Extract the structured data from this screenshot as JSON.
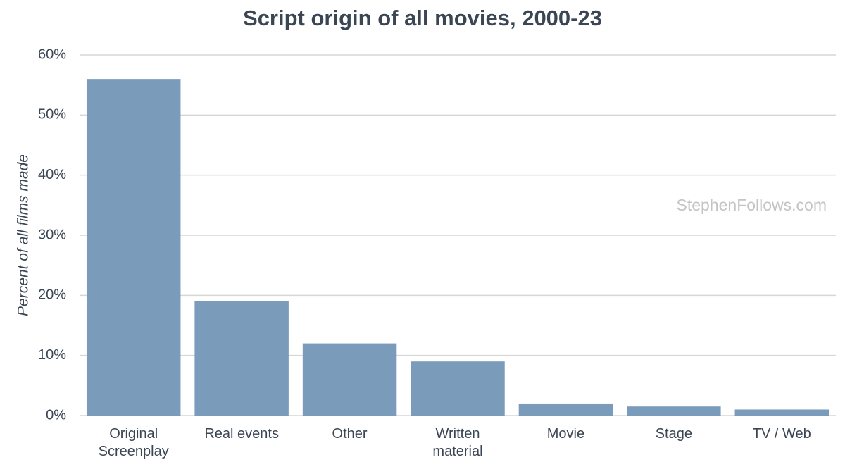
{
  "chart_data": {
    "type": "bar",
    "title": "Script origin of all movies, 2000-23",
    "y_label": "Percent of all films made",
    "watermark": "StephenFollows.com",
    "categories": [
      "Original Screenplay",
      "Real events",
      "Other",
      "Written material",
      "Movie",
      "Stage",
      "TV / Web"
    ],
    "values": [
      56,
      19,
      12,
      9,
      2,
      1.5,
      1
    ],
    "color": "#7a9cba",
    "ylim": [
      0,
      60
    ],
    "yticks": [
      {
        "value": 0,
        "label": "0%"
      },
      {
        "value": 10,
        "label": "10%"
      },
      {
        "value": 20,
        "label": "20%"
      },
      {
        "value": 30,
        "label": "30%"
      },
      {
        "value": 40,
        "label": "40%"
      },
      {
        "value": 50,
        "label": "50%"
      },
      {
        "value": 60,
        "label": "60%"
      }
    ],
    "grid": true
  }
}
